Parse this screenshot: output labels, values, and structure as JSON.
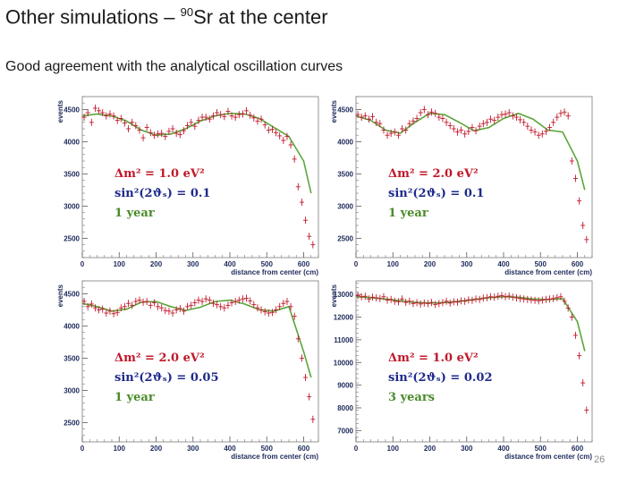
{
  "slide": {
    "title_main": "Other simulations – ",
    "title_sup": "90",
    "title_rest": "Sr at the center",
    "subtitle": "Good agreement with the analytical oscillation curves",
    "page_number": "26"
  },
  "colors": {
    "data_points": "#c0182a",
    "fit_curve": "#5aa63a",
    "axis_text": "#1e2a5a",
    "anno_red": "#c0182a",
    "anno_blue": "#1e2a8a",
    "anno_green": "#4a8a2a"
  },
  "chart_data": [
    {
      "type": "scatter",
      "ylabel": "events",
      "xlabel": "distance from center (cm)",
      "xticks": [
        0,
        100,
        200,
        300,
        400,
        500,
        600
      ],
      "yticks": [
        2500,
        3000,
        3500,
        4000,
        4500
      ],
      "xlim": [
        0,
        640
      ],
      "ylim": [
        2200,
        4700
      ],
      "annotation": {
        "line1": "Δm² = 1.0 eV²",
        "line2": "sin²(2ϑₛ) = 0.1",
        "line3": "1 year"
      },
      "x": [
        5,
        15,
        25,
        35,
        45,
        55,
        65,
        75,
        85,
        95,
        105,
        115,
        125,
        135,
        145,
        155,
        165,
        175,
        185,
        195,
        205,
        215,
        225,
        235,
        245,
        255,
        265,
        275,
        285,
        295,
        305,
        315,
        325,
        335,
        345,
        355,
        365,
        375,
        385,
        395,
        405,
        415,
        425,
        435,
        445,
        455,
        465,
        475,
        485,
        495,
        505,
        515,
        525,
        535,
        545,
        555,
        565,
        575,
        585,
        595,
        605,
        615,
        625
      ],
      "y": [
        4380,
        4450,
        4300,
        4520,
        4480,
        4450,
        4400,
        4430,
        4400,
        4330,
        4360,
        4290,
        4200,
        4300,
        4250,
        4180,
        4060,
        4220,
        4140,
        4100,
        4120,
        4130,
        4080,
        4160,
        4200,
        4130,
        4110,
        4170,
        4250,
        4300,
        4240,
        4330,
        4380,
        4380,
        4350,
        4400,
        4450,
        4420,
        4390,
        4470,
        4400,
        4380,
        4420,
        4430,
        4480,
        4410,
        4370,
        4320,
        4350,
        4260,
        4180,
        4190,
        4140,
        4090,
        4020,
        4080,
        3950,
        3730,
        3300,
        3060,
        2780,
        2530,
        2400
      ],
      "fit_x": [
        0,
        40,
        80,
        120,
        160,
        200,
        240,
        280,
        320,
        360,
        400,
        440,
        480,
        520,
        560,
        600,
        620
      ],
      "fit_y": [
        4400,
        4430,
        4400,
        4320,
        4180,
        4100,
        4120,
        4200,
        4320,
        4400,
        4440,
        4430,
        4360,
        4220,
        4080,
        3700,
        3200
      ]
    },
    {
      "type": "scatter",
      "ylabel": "events",
      "xlabel": "distance from center (cm)",
      "xticks": [
        0,
        100,
        200,
        300,
        400,
        500,
        600
      ],
      "yticks": [
        2500,
        3000,
        3500,
        4000,
        4500
      ],
      "xlim": [
        0,
        640
      ],
      "ylim": [
        2200,
        4700
      ],
      "annotation": {
        "line1": "Δm² = 2.0 eV²",
        "line2": "sin²(2ϑₛ) = 0.1",
        "line3": "1 year"
      },
      "x": [
        5,
        15,
        25,
        35,
        45,
        55,
        65,
        75,
        85,
        95,
        105,
        115,
        125,
        135,
        145,
        155,
        165,
        175,
        185,
        195,
        205,
        215,
        225,
        235,
        245,
        255,
        265,
        275,
        285,
        295,
        305,
        315,
        325,
        335,
        345,
        355,
        365,
        375,
        385,
        395,
        405,
        415,
        425,
        435,
        445,
        455,
        465,
        475,
        485,
        495,
        505,
        515,
        525,
        535,
        545,
        555,
        565,
        575,
        585,
        595,
        605,
        615,
        625
      ],
      "y": [
        4420,
        4380,
        4400,
        4350,
        4390,
        4300,
        4280,
        4180,
        4100,
        4130,
        4150,
        4100,
        4200,
        4180,
        4280,
        4320,
        4360,
        4450,
        4500,
        4420,
        4460,
        4440,
        4380,
        4360,
        4300,
        4250,
        4200,
        4150,
        4180,
        4120,
        4160,
        4220,
        4170,
        4240,
        4280,
        4300,
        4350,
        4330,
        4380,
        4420,
        4430,
        4450,
        4400,
        4380,
        4340,
        4300,
        4240,
        4180,
        4150,
        4100,
        4120,
        4160,
        4220,
        4300,
        4380,
        4440,
        4460,
        4400,
        3700,
        3430,
        3080,
        2700,
        2480
      ],
      "fit_x": [
        0,
        40,
        80,
        120,
        160,
        200,
        240,
        280,
        320,
        360,
        400,
        440,
        480,
        520,
        560,
        600,
        620
      ],
      "fit_y": [
        4400,
        4330,
        4180,
        4130,
        4300,
        4440,
        4420,
        4300,
        4170,
        4220,
        4360,
        4440,
        4350,
        4180,
        4150,
        3700,
        3250
      ]
    },
    {
      "type": "scatter",
      "ylabel": "events",
      "xlabel": "distance from center (cm)",
      "xticks": [
        0,
        100,
        200,
        300,
        400,
        500,
        600
      ],
      "yticks": [
        2500,
        3000,
        3500,
        4000,
        4500
      ],
      "xlim": [
        0,
        640
      ],
      "ylim": [
        2200,
        4700
      ],
      "annotation": {
        "line1": "Δm² = 2.0 eV²",
        "line2": "sin²(2ϑₛ) = 0.05",
        "line3": "1 year"
      },
      "x": [
        5,
        15,
        25,
        35,
        45,
        55,
        65,
        75,
        85,
        95,
        105,
        115,
        125,
        135,
        145,
        155,
        165,
        175,
        185,
        195,
        205,
        215,
        225,
        235,
        245,
        255,
        265,
        275,
        285,
        295,
        305,
        315,
        325,
        335,
        345,
        355,
        365,
        375,
        385,
        395,
        405,
        415,
        425,
        435,
        445,
        455,
        465,
        475,
        485,
        495,
        505,
        515,
        525,
        535,
        545,
        555,
        565,
        575,
        585,
        595,
        605,
        615,
        625
      ],
      "y": [
        4380,
        4300,
        4340,
        4280,
        4250,
        4260,
        4200,
        4230,
        4190,
        4210,
        4280,
        4300,
        4350,
        4320,
        4380,
        4400,
        4370,
        4380,
        4320,
        4360,
        4300,
        4280,
        4240,
        4230,
        4200,
        4250,
        4270,
        4230,
        4300,
        4320,
        4360,
        4400,
        4380,
        4420,
        4400,
        4350,
        4330,
        4300,
        4280,
        4320,
        4360,
        4380,
        4400,
        4420,
        4430,
        4390,
        4330,
        4280,
        4250,
        4220,
        4200,
        4210,
        4250,
        4300,
        4350,
        4380,
        4300,
        4150,
        3800,
        3500,
        3200,
        2900,
        2550
      ],
      "fit_x": [
        0,
        40,
        80,
        120,
        160,
        200,
        240,
        280,
        320,
        360,
        400,
        440,
        480,
        520,
        560,
        600,
        620
      ],
      "fit_y": [
        4350,
        4300,
        4230,
        4260,
        4370,
        4380,
        4300,
        4240,
        4290,
        4380,
        4400,
        4340,
        4250,
        4230,
        4300,
        3600,
        3200
      ]
    },
    {
      "type": "scatter",
      "ylabel": "events",
      "xlabel": "distance from center (cm)",
      "xticks": [
        0,
        100,
        200,
        300,
        400,
        500,
        600
      ],
      "yticks": [
        7000,
        8000,
        9000,
        10000,
        11000,
        12000,
        13000
      ],
      "xlim": [
        0,
        640
      ],
      "ylim": [
        6500,
        13600
      ],
      "annotation": {
        "line1": "Δm² = 1.0 eV²",
        "line2": "sin²(2ϑₛ) = 0.02",
        "line3": "3 years"
      },
      "x": [
        5,
        15,
        25,
        35,
        45,
        55,
        65,
        75,
        85,
        95,
        105,
        115,
        125,
        135,
        145,
        155,
        165,
        175,
        185,
        195,
        205,
        215,
        225,
        235,
        245,
        255,
        265,
        275,
        285,
        295,
        305,
        315,
        325,
        335,
        345,
        355,
        365,
        375,
        385,
        395,
        405,
        415,
        425,
        435,
        445,
        455,
        465,
        475,
        485,
        495,
        505,
        515,
        525,
        535,
        545,
        555,
        565,
        575,
        585,
        595,
        605,
        615,
        625
      ],
      "y": [
        12950,
        12900,
        12920,
        12800,
        12880,
        12850,
        12820,
        12900,
        12750,
        12780,
        12700,
        12680,
        12800,
        12650,
        12700,
        12600,
        12640,
        12580,
        12620,
        12600,
        12650,
        12560,
        12600,
        12640,
        12700,
        12620,
        12680,
        12660,
        12720,
        12700,
        12760,
        12740,
        12800,
        12780,
        12840,
        12860,
        12900,
        12880,
        12920,
        12950,
        12900,
        12930,
        12880,
        12850,
        12820,
        12800,
        12780,
        12760,
        12740,
        12720,
        12750,
        12780,
        12800,
        12820,
        12860,
        12900,
        12700,
        12400,
        12000,
        11200,
        10300,
        9100,
        7900
      ],
      "fit_x": [
        0,
        40,
        80,
        120,
        160,
        200,
        240,
        280,
        320,
        360,
        400,
        440,
        480,
        520,
        560,
        600,
        620
      ],
      "fit_y": [
        12900,
        12860,
        12800,
        12720,
        12650,
        12620,
        12640,
        12700,
        12780,
        12850,
        12900,
        12880,
        12800,
        12770,
        12820,
        11800,
        10500
      ]
    }
  ]
}
